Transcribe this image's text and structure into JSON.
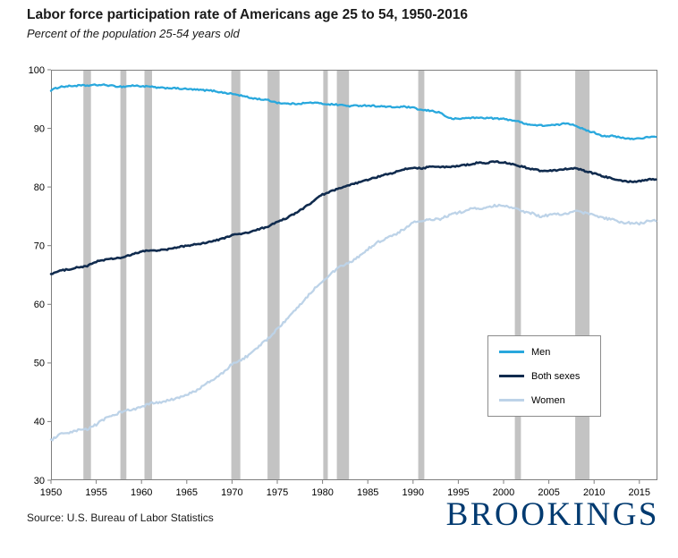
{
  "header": {
    "title": "Labor force participation rate of Americans age 25 to 54, 1950-2016",
    "subtitle": "Percent of the population 25-54 years old"
  },
  "chart_data": {
    "type": "line",
    "title": "Labor force participation rate of Americans age 25 to 54, 1950-2016",
    "subtitle": "Percent of the population 25-54 years old",
    "xlabel": "",
    "ylabel": "",
    "xlim": [
      1950,
      2017
    ],
    "ylim": [
      30,
      100
    ],
    "grid": false,
    "legend_position": "right-center",
    "y_ticks": [
      30,
      40,
      50,
      60,
      70,
      80,
      90,
      100
    ],
    "x_ticks": [
      1950,
      1955,
      1960,
      1965,
      1970,
      1975,
      1980,
      1985,
      1990,
      1995,
      2000,
      2005,
      2010,
      2015
    ],
    "x": [
      1950,
      1951,
      1952,
      1953,
      1954,
      1955,
      1956,
      1957,
      1958,
      1959,
      1960,
      1961,
      1962,
      1963,
      1964,
      1965,
      1966,
      1967,
      1968,
      1969,
      1970,
      1971,
      1972,
      1973,
      1974,
      1975,
      1976,
      1977,
      1978,
      1979,
      1980,
      1981,
      1982,
      1983,
      1984,
      1985,
      1986,
      1987,
      1988,
      1989,
      1990,
      1991,
      1992,
      1993,
      1994,
      1995,
      1996,
      1997,
      1998,
      1999,
      2000,
      2001,
      2002,
      2003,
      2004,
      2005,
      2006,
      2007,
      2008,
      2009,
      2010,
      2011,
      2012,
      2013,
      2014,
      2015,
      2016
    ],
    "series": [
      {
        "name": "Men",
        "color": "#29a8dd",
        "values": [
          96.5,
          97.1,
          97.2,
          97.3,
          97.3,
          97.4,
          97.4,
          97.2,
          97.1,
          97.3,
          97.2,
          97.1,
          96.9,
          96.9,
          96.8,
          96.7,
          96.6,
          96.5,
          96.4,
          96.1,
          95.9,
          95.6,
          95.2,
          95.0,
          94.8,
          94.4,
          94.2,
          94.2,
          94.3,
          94.4,
          94.2,
          94.1,
          94.0,
          93.8,
          93.9,
          93.9,
          93.8,
          93.7,
          93.6,
          93.7,
          93.5,
          93.1,
          93.0,
          92.7,
          91.7,
          91.6,
          91.8,
          91.8,
          91.8,
          91.7,
          91.6,
          91.4,
          91.0,
          90.6,
          90.5,
          90.5,
          90.6,
          90.9,
          90.5,
          89.7,
          89.3,
          88.7,
          88.7,
          88.4,
          88.2,
          88.3,
          88.5
        ]
      },
      {
        "name": "Both sexes",
        "color": "#102b4e",
        "values": [
          65.2,
          65.7,
          66.0,
          66.3,
          66.5,
          67.3,
          67.6,
          67.8,
          68.0,
          68.5,
          69.0,
          69.2,
          69.2,
          69.4,
          69.7,
          70.0,
          70.2,
          70.5,
          70.8,
          71.2,
          71.8,
          72.0,
          72.3,
          72.8,
          73.3,
          74.0,
          74.7,
          75.5,
          76.5,
          77.6,
          78.7,
          79.3,
          79.8,
          80.3,
          80.8,
          81.2,
          81.7,
          82.1,
          82.5,
          83.0,
          83.3,
          83.2,
          83.5,
          83.4,
          83.4,
          83.6,
          83.8,
          84.1,
          84.1,
          84.3,
          84.2,
          83.9,
          83.5,
          83.1,
          82.8,
          82.8,
          82.9,
          83.1,
          83.2,
          82.7,
          82.3,
          81.8,
          81.5,
          81.1,
          80.9,
          81.0,
          81.3
        ]
      },
      {
        "name": "Women",
        "color": "#bdd3e8",
        "values": [
          36.8,
          37.8,
          38.0,
          38.5,
          38.7,
          39.5,
          40.5,
          41.2,
          41.8,
          42.0,
          42.5,
          43.1,
          43.2,
          43.6,
          44.0,
          44.5,
          45.3,
          46.3,
          47.2,
          48.3,
          49.8,
          50.5,
          51.5,
          52.8,
          54.2,
          55.8,
          57.3,
          59.0,
          60.8,
          62.5,
          64.0,
          65.3,
          66.4,
          67.1,
          68.1,
          69.4,
          70.5,
          71.2,
          71.9,
          72.8,
          74.0,
          74.1,
          74.5,
          74.5,
          75.2,
          75.6,
          76.1,
          76.4,
          76.3,
          76.8,
          76.8,
          76.4,
          75.9,
          75.6,
          75.0,
          75.2,
          75.4,
          75.4,
          75.8,
          75.6,
          75.2,
          74.7,
          74.5,
          73.9,
          73.9,
          73.7,
          74.3
        ]
      }
    ],
    "recessions": [
      [
        1953.58,
        1954.42
      ],
      [
        1957.67,
        1958.33
      ],
      [
        1960.33,
        1961.17
      ],
      [
        1969.92,
        1970.92
      ],
      [
        1973.92,
        1975.25
      ],
      [
        1980.08,
        1980.58
      ],
      [
        1981.58,
        1982.92
      ],
      [
        1990.58,
        1991.25
      ],
      [
        2001.25,
        2001.92
      ],
      [
        2007.92,
        2009.5
      ]
    ],
    "recession_color": "#c3c3c3"
  },
  "footer": {
    "source": "Source: U.S. Bureau of Labor Statistics",
    "logo": "BROOKINGS",
    "logo_color": "#003A70"
  }
}
